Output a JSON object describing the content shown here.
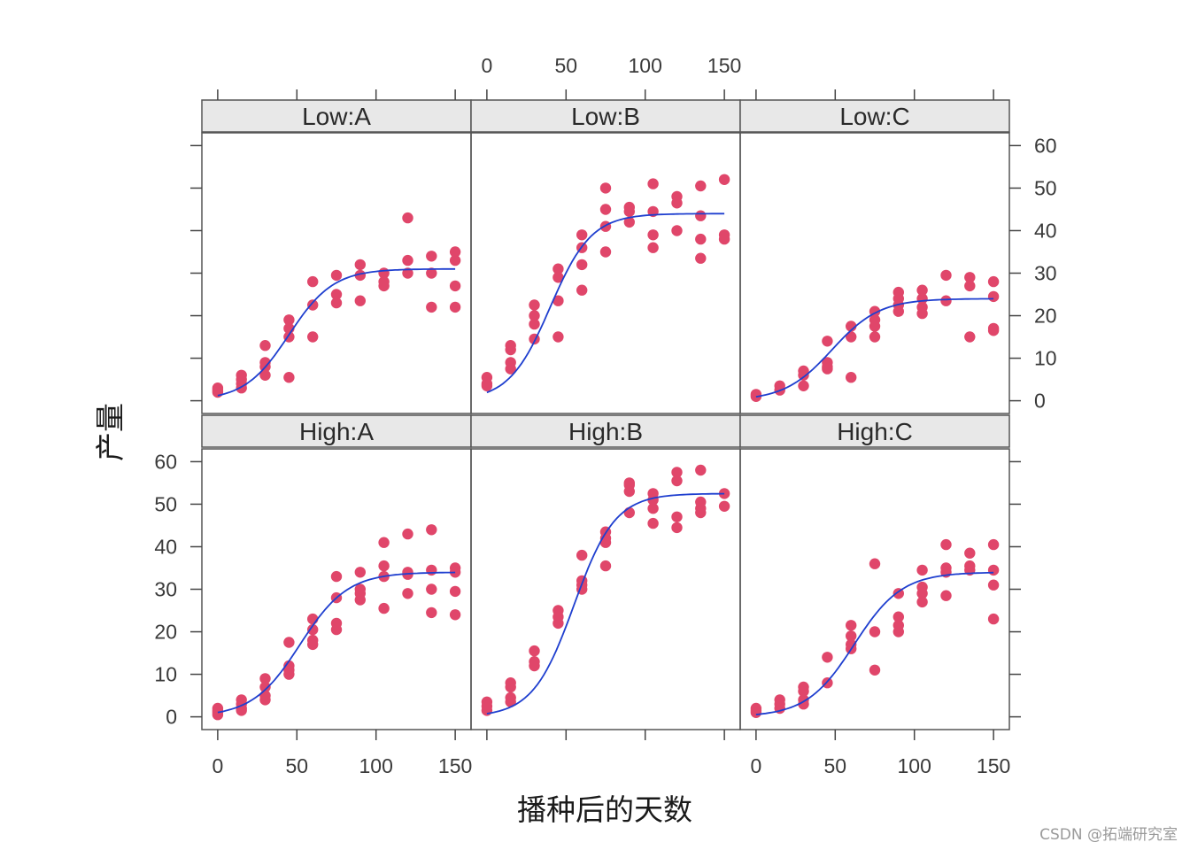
{
  "chart_data": {
    "type": "scatter",
    "layout": "trellis 3x2",
    "xlabel": "播种后的天数",
    "ylabel": "产量",
    "xlim": [
      -10,
      160
    ],
    "ylim": [
      -3,
      63
    ],
    "x_ticks": [
      0,
      50,
      100,
      150
    ],
    "y_ticks": [
      0,
      10,
      20,
      30,
      40,
      50,
      60
    ],
    "point_color": "#e0466a",
    "fit_color": "#1f3fcf",
    "strip_color": "#e8e8e8",
    "panels": [
      {
        "strip": "Low:A",
        "row": "top",
        "col": 0,
        "fit": {
          "asym": 31,
          "mid": 45,
          "scale": 14
        },
        "points": [
          [
            0,
            3
          ],
          [
            0,
            2.5
          ],
          [
            0,
            2
          ],
          [
            15,
            6
          ],
          [
            15,
            5
          ],
          [
            15,
            4
          ],
          [
            15,
            3
          ],
          [
            30,
            13
          ],
          [
            30,
            9
          ],
          [
            30,
            8
          ],
          [
            30,
            6
          ],
          [
            45,
            19
          ],
          [
            45,
            17
          ],
          [
            45,
            15
          ],
          [
            45,
            5.5
          ],
          [
            60,
            28
          ],
          [
            60,
            22.5
          ],
          [
            60,
            15
          ],
          [
            75,
            29.5
          ],
          [
            75,
            25
          ],
          [
            75,
            23
          ],
          [
            90,
            32
          ],
          [
            90,
            29.5
          ],
          [
            90,
            23.5
          ],
          [
            105,
            30
          ],
          [
            105,
            28
          ],
          [
            105,
            27
          ],
          [
            120,
            43
          ],
          [
            120,
            33
          ],
          [
            120,
            30
          ],
          [
            135,
            34
          ],
          [
            135,
            30
          ],
          [
            135,
            22
          ],
          [
            150,
            35
          ],
          [
            150,
            33
          ],
          [
            150,
            27
          ],
          [
            150,
            22
          ]
        ]
      },
      {
        "strip": "Low:B",
        "row": "top",
        "col": 1,
        "fit": {
          "asym": 44,
          "mid": 40,
          "scale": 13
        },
        "points": [
          [
            0,
            5.5
          ],
          [
            0,
            4
          ],
          [
            0,
            3.5
          ],
          [
            15,
            13
          ],
          [
            15,
            12
          ],
          [
            15,
            9
          ],
          [
            15,
            7.5
          ],
          [
            30,
            22.5
          ],
          [
            30,
            20
          ],
          [
            30,
            18
          ],
          [
            30,
            14.5
          ],
          [
            45,
            31
          ],
          [
            45,
            29
          ],
          [
            45,
            23.5
          ],
          [
            45,
            15
          ],
          [
            60,
            39
          ],
          [
            60,
            36
          ],
          [
            60,
            32
          ],
          [
            60,
            26
          ],
          [
            75,
            50
          ],
          [
            75,
            45
          ],
          [
            75,
            41
          ],
          [
            75,
            35
          ],
          [
            90,
            45.5
          ],
          [
            90,
            44.5
          ],
          [
            90,
            42
          ],
          [
            105,
            51
          ],
          [
            105,
            44.5
          ],
          [
            105,
            39
          ],
          [
            105,
            36
          ],
          [
            120,
            48
          ],
          [
            120,
            46.5
          ],
          [
            120,
            40
          ],
          [
            135,
            50.5
          ],
          [
            135,
            43.5
          ],
          [
            135,
            38
          ],
          [
            135,
            33.5
          ],
          [
            150,
            52
          ],
          [
            150,
            39
          ],
          [
            150,
            38
          ]
        ]
      },
      {
        "strip": "Low:C",
        "row": "top",
        "col": 2,
        "fit": {
          "asym": 24,
          "mid": 48,
          "scale": 15
        },
        "points": [
          [
            0,
            1.5
          ],
          [
            0,
            1
          ],
          [
            15,
            3.5
          ],
          [
            15,
            2.5
          ],
          [
            30,
            7
          ],
          [
            30,
            6
          ],
          [
            30,
            3.5
          ],
          [
            45,
            14
          ],
          [
            45,
            9
          ],
          [
            45,
            8
          ],
          [
            45,
            7.5
          ],
          [
            60,
            17.5
          ],
          [
            60,
            15
          ],
          [
            60,
            5.5
          ],
          [
            75,
            21
          ],
          [
            75,
            19
          ],
          [
            75,
            17.5
          ],
          [
            75,
            15
          ],
          [
            90,
            25.5
          ],
          [
            90,
            24
          ],
          [
            90,
            22.5
          ],
          [
            90,
            21
          ],
          [
            105,
            26
          ],
          [
            105,
            24
          ],
          [
            105,
            22
          ],
          [
            105,
            20.5
          ],
          [
            120,
            29.5
          ],
          [
            120,
            23.5
          ],
          [
            135,
            29
          ],
          [
            135,
            27
          ],
          [
            135,
            15
          ],
          [
            150,
            28
          ],
          [
            150,
            24.5
          ],
          [
            150,
            17
          ],
          [
            150,
            16.5
          ]
        ]
      },
      {
        "strip": "High:A",
        "row": "bottom",
        "col": 0,
        "fit": {
          "asym": 34,
          "mid": 52,
          "scale": 15
        },
        "points": [
          [
            0,
            2
          ],
          [
            0,
            1.5
          ],
          [
            0,
            1
          ],
          [
            0,
            0.5
          ],
          [
            15,
            4
          ],
          [
            15,
            3
          ],
          [
            15,
            2
          ],
          [
            15,
            1.5
          ],
          [
            30,
            9
          ],
          [
            30,
            7
          ],
          [
            30,
            5
          ],
          [
            30,
            4
          ],
          [
            45,
            17.5
          ],
          [
            45,
            12
          ],
          [
            45,
            11
          ],
          [
            45,
            10
          ],
          [
            60,
            23
          ],
          [
            60,
            20.5
          ],
          [
            60,
            18
          ],
          [
            60,
            17
          ],
          [
            75,
            33
          ],
          [
            75,
            28
          ],
          [
            75,
            22
          ],
          [
            75,
            20.5
          ],
          [
            90,
            34
          ],
          [
            90,
            30
          ],
          [
            90,
            29
          ],
          [
            90,
            27.5
          ],
          [
            105,
            41
          ],
          [
            105,
            35.5
          ],
          [
            105,
            33
          ],
          [
            105,
            25.5
          ],
          [
            120,
            43
          ],
          [
            120,
            34
          ],
          [
            120,
            33.5
          ],
          [
            120,
            29
          ],
          [
            135,
            44
          ],
          [
            135,
            34.5
          ],
          [
            135,
            30
          ],
          [
            135,
            24.5
          ],
          [
            150,
            35
          ],
          [
            150,
            34
          ],
          [
            150,
            29.5
          ],
          [
            150,
            24
          ]
        ]
      },
      {
        "strip": "High:B",
        "row": "bottom",
        "col": 1,
        "fit": {
          "asym": 52.5,
          "mid": 55,
          "scale": 13
        },
        "points": [
          [
            0,
            3.5
          ],
          [
            0,
            2.5
          ],
          [
            0,
            1.5
          ],
          [
            15,
            8
          ],
          [
            15,
            7
          ],
          [
            15,
            4.5
          ],
          [
            15,
            3.5
          ],
          [
            30,
            15.5
          ],
          [
            30,
            13
          ],
          [
            30,
            12
          ],
          [
            45,
            25
          ],
          [
            45,
            23.5
          ],
          [
            45,
            22
          ],
          [
            60,
            38
          ],
          [
            60,
            32
          ],
          [
            60,
            31
          ],
          [
            60,
            30
          ],
          [
            75,
            43.5
          ],
          [
            75,
            42
          ],
          [
            75,
            41
          ],
          [
            75,
            35.5
          ],
          [
            90,
            55
          ],
          [
            90,
            54.5
          ],
          [
            90,
            53
          ],
          [
            90,
            48
          ],
          [
            105,
            52.5
          ],
          [
            105,
            51
          ],
          [
            105,
            49
          ],
          [
            105,
            45.5
          ],
          [
            120,
            57.5
          ],
          [
            120,
            55.5
          ],
          [
            120,
            47
          ],
          [
            120,
            44.5
          ],
          [
            135,
            58
          ],
          [
            135,
            50.5
          ],
          [
            135,
            49
          ],
          [
            135,
            48
          ],
          [
            150,
            52.5
          ],
          [
            150,
            49.5
          ]
        ]
      },
      {
        "strip": "High:C",
        "row": "bottom",
        "col": 2,
        "fit": {
          "asym": 34,
          "mid": 62,
          "scale": 15
        },
        "points": [
          [
            0,
            2
          ],
          [
            0,
            1.5
          ],
          [
            0,
            1
          ],
          [
            15,
            4
          ],
          [
            15,
            3
          ],
          [
            15,
            2
          ],
          [
            30,
            7
          ],
          [
            30,
            6
          ],
          [
            30,
            4
          ],
          [
            30,
            3
          ],
          [
            45,
            14
          ],
          [
            45,
            8
          ],
          [
            60,
            21.5
          ],
          [
            60,
            19
          ],
          [
            60,
            17
          ],
          [
            60,
            16
          ],
          [
            75,
            36
          ],
          [
            75,
            20
          ],
          [
            75,
            11
          ],
          [
            90,
            29
          ],
          [
            90,
            23.5
          ],
          [
            90,
            21.5
          ],
          [
            90,
            20
          ],
          [
            105,
            34.5
          ],
          [
            105,
            30.5
          ],
          [
            105,
            29
          ],
          [
            105,
            27
          ],
          [
            120,
            40.5
          ],
          [
            120,
            35
          ],
          [
            120,
            34
          ],
          [
            120,
            28.5
          ],
          [
            135,
            38.5
          ],
          [
            135,
            35.5
          ],
          [
            135,
            34.5
          ],
          [
            150,
            40.5
          ],
          [
            150,
            34.5
          ],
          [
            150,
            31
          ],
          [
            150,
            23
          ]
        ]
      }
    ]
  },
  "watermark": "CSDN @拓端研究室"
}
